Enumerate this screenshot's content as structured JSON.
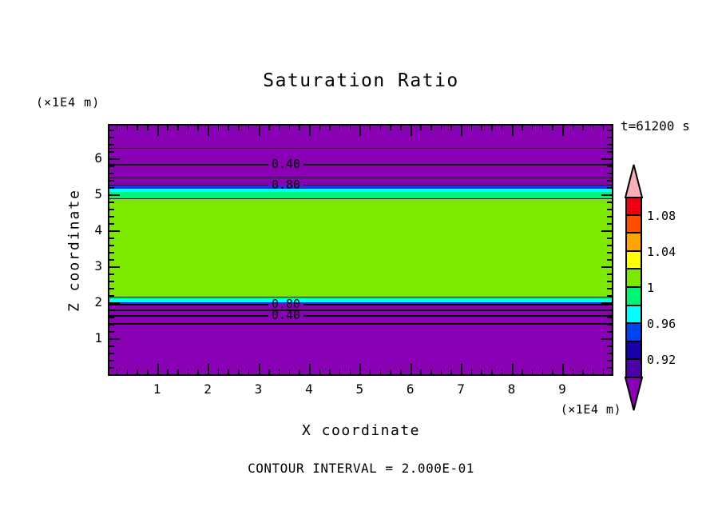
{
  "header": {
    "title": "Saturation Ratio",
    "time_label": "t=61200 s"
  },
  "axes": {
    "x": {
      "label": "X coordinate",
      "unit": "(×1E4 m)",
      "range": [
        0,
        10
      ],
      "minor_step": 0.2,
      "major_tick_labels": [
        "1",
        "2",
        "3",
        "4",
        "5",
        "6",
        "7",
        "8",
        "9"
      ]
    },
    "z": {
      "label": "Z coordinate",
      "unit": "(×1E4 m)",
      "range": [
        0,
        7
      ],
      "minor_step": 0.2,
      "major_tick_labels": [
        "1",
        "2",
        "3",
        "4",
        "5",
        "6"
      ]
    }
  },
  "footer": {
    "contour_note": "CONTOUR INTERVAL = 2.000E-01"
  },
  "chart_data": {
    "type": "heatmap",
    "title": "Saturation Ratio",
    "xlabel": "X coordinate",
    "ylabel": "Z coordinate",
    "x_unit": "(×1E4 m)",
    "z_unit": "(×1E4 m)",
    "time_label": "t=61200 s",
    "contour_interval": 0.2,
    "x_range": [
      0,
      10
    ],
    "z_range": [
      0,
      7
    ],
    "field_description": "Saturation ratio ≈ 1 in a horizontal layer from z≈2.0 to z≈5.1 (×1E4 m); sharply drops below 0.2 above and below that layer, uniform in x.",
    "bands": [
      {
        "z_top": 7.0,
        "z_bottom": 5.24,
        "value_range": "< 0.90",
        "color": "#8A00B4"
      },
      {
        "z_top": 5.24,
        "z_bottom": 5.16,
        "value_range": "0.92–0.96",
        "color": "#1A35E0"
      },
      {
        "z_top": 5.16,
        "z_bottom": 5.07,
        "value_range": "0.96–0.98",
        "color": "#00FFFF"
      },
      {
        "z_top": 5.07,
        "z_bottom": 4.89,
        "value_range": "0.98–1.00",
        "color": "#00F573"
      },
      {
        "z_top": 4.89,
        "z_bottom": 2.16,
        "value_range": "1.00–1.02",
        "color": "#7DE800"
      },
      {
        "z_top": 2.16,
        "z_bottom": 2.08,
        "value_range": "0.98–1.00",
        "color": "#00F573"
      },
      {
        "z_top": 2.08,
        "z_bottom": 2.0,
        "value_range": "0.96–0.98",
        "color": "#00FFFF"
      },
      {
        "z_top": 2.0,
        "z_bottom": 1.95,
        "value_range": "0.92–0.96",
        "color": "#1A35E0"
      },
      {
        "z_top": 1.95,
        "z_bottom": 0.0,
        "value_range": "< 0.90",
        "color": "#8A00B4"
      }
    ],
    "contours": [
      {
        "value": 0.2,
        "z": 6.29,
        "labeled": false,
        "label": ""
      },
      {
        "value": 0.4,
        "z": 5.84,
        "labeled": true,
        "label": "0.40"
      },
      {
        "value": 0.6,
        "z": 5.47,
        "labeled": false,
        "label": ""
      },
      {
        "value": 0.8,
        "z": 5.27,
        "labeled": true,
        "label": "0.80"
      },
      {
        "value": 1.0,
        "z": 4.89,
        "labeled": false,
        "label": ""
      },
      {
        "value": 1.0,
        "z": 2.16,
        "labeled": false,
        "label": ""
      },
      {
        "value": 0.8,
        "z": 1.95,
        "labeled": true,
        "label": "0.80"
      },
      {
        "value": 0.6,
        "z": 1.8,
        "labeled": false,
        "label": ""
      },
      {
        "value": 0.4,
        "z": 1.64,
        "labeled": true,
        "label": "0.40"
      },
      {
        "value": 0.2,
        "z": 1.42,
        "labeled": false,
        "label": ""
      }
    ],
    "colorbar": {
      "above_color": "#F7AEB6",
      "below_color": "#8A00B4",
      "segments": [
        {
          "value_range": "1.08–1.10",
          "color": "#EE0011"
        },
        {
          "value_range": "1.06–1.08",
          "color": "#FF4E00"
        },
        {
          "value_range": "1.04–1.06",
          "color": "#FFA300"
        },
        {
          "value_range": "1.02–1.04",
          "color": "#FFFF00"
        },
        {
          "value_range": "1.00–1.02",
          "color": "#7DE800"
        },
        {
          "value_range": "0.98–1.00",
          "color": "#00F573"
        },
        {
          "value_range": "0.96–0.98",
          "color": "#00FFFF"
        },
        {
          "value_range": "0.94–0.96",
          "color": "#0043F0"
        },
        {
          "value_range": "0.92–0.94",
          "color": "#1500A8"
        },
        {
          "value_range": "0.90–0.92",
          "color": "#4B00A8"
        }
      ],
      "labels": [
        "1.08",
        "1.04",
        "1",
        "0.96",
        "0.92"
      ]
    }
  }
}
